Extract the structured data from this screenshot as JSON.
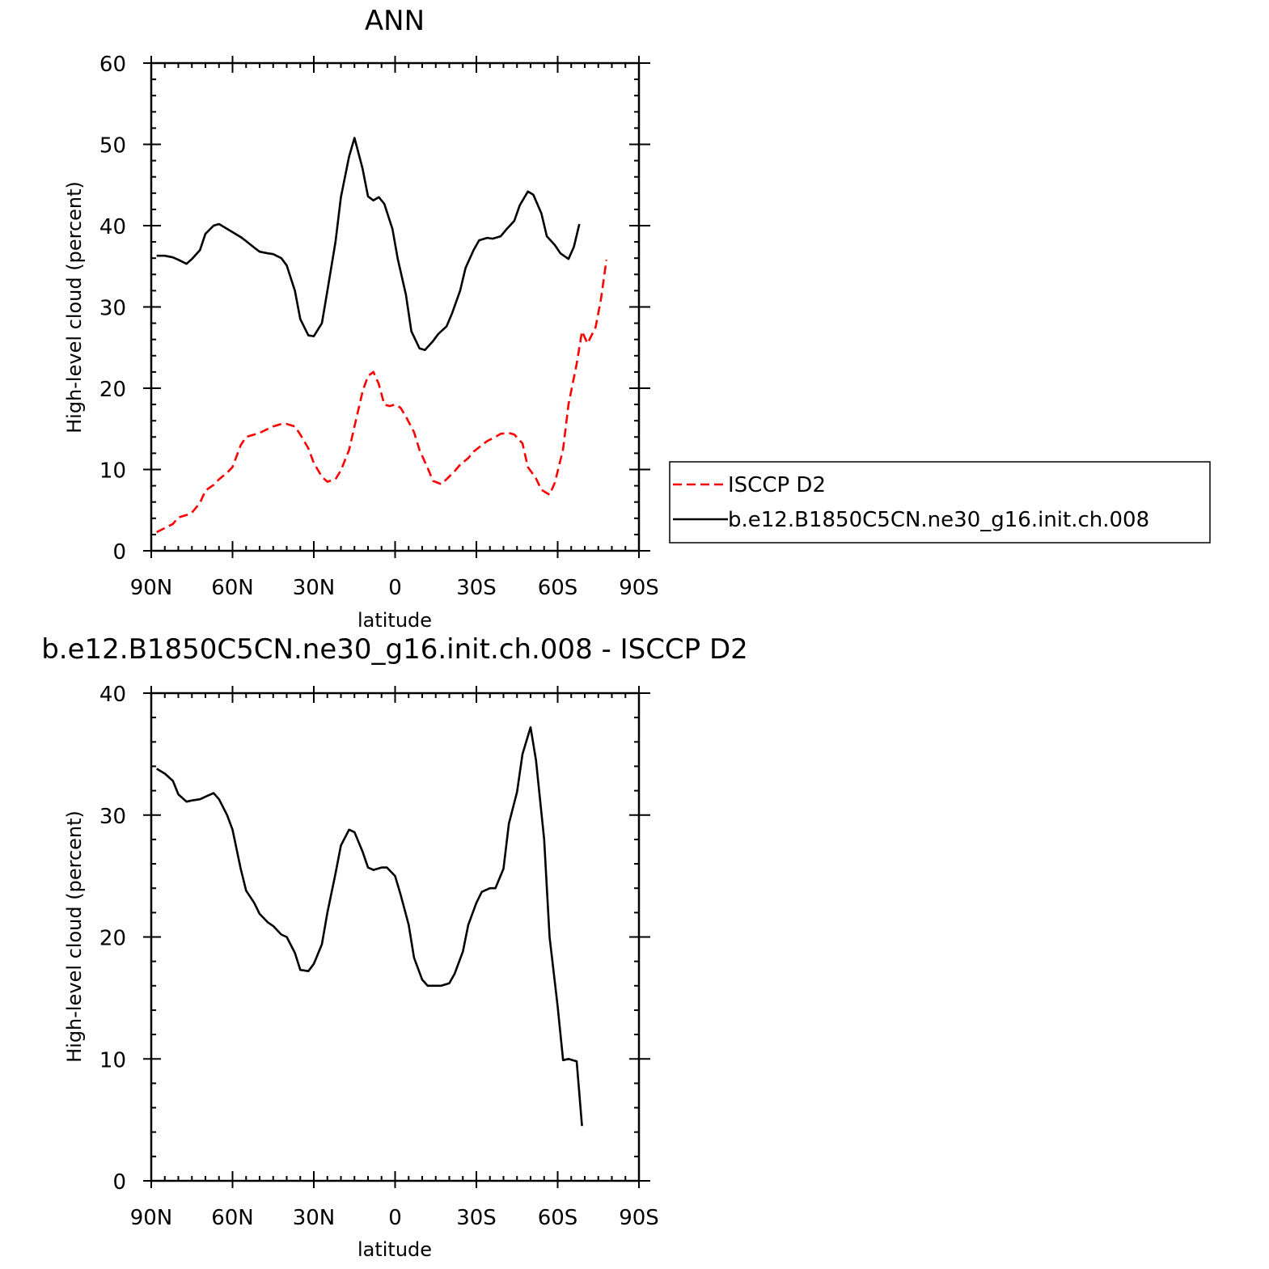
{
  "chart_data": [
    {
      "type": "line",
      "title": "ANN",
      "xlabel": "latitude",
      "ylabel": "High-level cloud (percent)",
      "xlim": [
        -90,
        90
      ],
      "ylim": [
        0,
        60
      ],
      "x_ticks": [
        {
          "value": -90,
          "label": "90N"
        },
        {
          "value": -60,
          "label": "60N"
        },
        {
          "value": -30,
          "label": "30N"
        },
        {
          "value": 0,
          "label": "0"
        },
        {
          "value": 30,
          "label": "30S"
        },
        {
          "value": 60,
          "label": "60S"
        },
        {
          "value": 90,
          "label": "90S"
        }
      ],
      "y_ticks": [
        0,
        10,
        20,
        30,
        40,
        50,
        60
      ],
      "legend": {
        "placement": "right",
        "entries": [
          "ISCCP D2",
          "b.e12.B1850C5CN.ne30_g16.init.ch.008"
        ]
      },
      "series": [
        {
          "name": "ISCCP D2",
          "color": "#ff0000",
          "dash": true,
          "points": [
            [
              -88,
              2.3
            ],
            [
              -85,
              2.8
            ],
            [
              -82,
              3.3
            ],
            [
              -80,
              4.1
            ],
            [
              -77,
              4.4
            ],
            [
              -75,
              4.7
            ],
            [
              -72,
              5.9
            ],
            [
              -70,
              7.4
            ],
            [
              -67,
              8.1
            ],
            [
              -65,
              8.8
            ],
            [
              -62,
              9.6
            ],
            [
              -60,
              10.3
            ],
            [
              -57,
              13.0
            ],
            [
              -55,
              14.0
            ],
            [
              -52,
              14.3
            ],
            [
              -50,
              14.5
            ],
            [
              -47,
              15.0
            ],
            [
              -45,
              15.3
            ],
            [
              -42,
              15.6
            ],
            [
              -40,
              15.6
            ],
            [
              -37,
              15.3
            ],
            [
              -35,
              14.3
            ],
            [
              -32,
              12.6
            ],
            [
              -30,
              10.8
            ],
            [
              -27,
              9.1
            ],
            [
              -25,
              8.5
            ],
            [
              -22,
              8.8
            ],
            [
              -20,
              9.9
            ],
            [
              -17,
              12.4
            ],
            [
              -15,
              15.3
            ],
            [
              -12,
              19.6
            ],
            [
              -10,
              21.5
            ],
            [
              -8,
              22.0
            ],
            [
              -6,
              20.5
            ],
            [
              -4,
              18.0
            ],
            [
              -2,
              17.8
            ],
            [
              0,
              18.0
            ],
            [
              2,
              17.6
            ],
            [
              4,
              16.5
            ],
            [
              7,
              14.6
            ],
            [
              9,
              12.4
            ],
            [
              12,
              10.2
            ],
            [
              14,
              8.6
            ],
            [
              17,
              8.2
            ],
            [
              19,
              8.8
            ],
            [
              22,
              9.8
            ],
            [
              24,
              10.6
            ],
            [
              27,
              11.4
            ],
            [
              29,
              12.2
            ],
            [
              32,
              13.0
            ],
            [
              34,
              13.5
            ],
            [
              37,
              14.0
            ],
            [
              39,
              14.4
            ],
            [
              42,
              14.5
            ],
            [
              44,
              14.3
            ],
            [
              47,
              13.2
            ],
            [
              49,
              10.3
            ],
            [
              52,
              8.9
            ],
            [
              54,
              7.5
            ],
            [
              57,
              6.9
            ],
            [
              59,
              8.4
            ],
            [
              62,
              12.5
            ],
            [
              64,
              18.0
            ],
            [
              67,
              23.0
            ],
            [
              69,
              27.0
            ],
            [
              71,
              25.5
            ],
            [
              74,
              27.5
            ],
            [
              76,
              31.0
            ],
            [
              78,
              35.8
            ]
          ]
        },
        {
          "name": "b.e12.B1850C5CN.ne30_g16.init.ch.008",
          "color": "#000000",
          "dash": false,
          "points": [
            [
              -88,
              36.3
            ],
            [
              -85,
              36.3
            ],
            [
              -82,
              36.1
            ],
            [
              -80,
              35.8
            ],
            [
              -77,
              35.3
            ],
            [
              -75,
              35.9
            ],
            [
              -72,
              37.0
            ],
            [
              -70,
              39.0
            ],
            [
              -67,
              40.0
            ],
            [
              -65,
              40.2
            ],
            [
              -62,
              39.6
            ],
            [
              -60,
              39.2
            ],
            [
              -57,
              38.6
            ],
            [
              -55,
              38.1
            ],
            [
              -52,
              37.3
            ],
            [
              -50,
              36.8
            ],
            [
              -47,
              36.6
            ],
            [
              -45,
              36.5
            ],
            [
              -42,
              36.0
            ],
            [
              -40,
              35.1
            ],
            [
              -37,
              32.0
            ],
            [
              -35,
              28.5
            ],
            [
              -32,
              26.5
            ],
            [
              -30,
              26.4
            ],
            [
              -27,
              28.0
            ],
            [
              -25,
              32.0
            ],
            [
              -22,
              38.0
            ],
            [
              -20,
              43.5
            ],
            [
              -17,
              48.5
            ],
            [
              -15,
              50.8
            ],
            [
              -12,
              47.0
            ],
            [
              -10,
              43.6
            ],
            [
              -8,
              43.1
            ],
            [
              -6,
              43.5
            ],
            [
              -4,
              42.7
            ],
            [
              -1,
              39.6
            ],
            [
              1,
              35.9
            ],
            [
              4,
              31.5
            ],
            [
              6,
              27.0
            ],
            [
              9,
              24.9
            ],
            [
              11,
              24.7
            ],
            [
              14,
              25.8
            ],
            [
              16,
              26.7
            ],
            [
              19,
              27.6
            ],
            [
              21,
              29.2
            ],
            [
              24,
              32.0
            ],
            [
              26,
              34.8
            ],
            [
              29,
              37.0
            ],
            [
              31,
              38.2
            ],
            [
              34,
              38.5
            ],
            [
              36,
              38.4
            ],
            [
              39,
              38.7
            ],
            [
              41,
              39.5
            ],
            [
              44,
              40.6
            ],
            [
              46,
              42.5
            ],
            [
              49,
              44.2
            ],
            [
              51,
              43.8
            ],
            [
              54,
              41.5
            ],
            [
              56,
              38.7
            ],
            [
              59,
              37.6
            ],
            [
              61,
              36.6
            ],
            [
              64,
              35.9
            ],
            [
              66,
              37.4
            ],
            [
              68,
              40.2
            ]
          ]
        }
      ]
    },
    {
      "type": "line",
      "title": "b.e12.B1850C5CN.ne30_g16.init.ch.008 - ISCCP D2",
      "xlabel": "latitude",
      "ylabel": "High-level cloud (percent)",
      "xlim": [
        -90,
        90
      ],
      "ylim": [
        0,
        40
      ],
      "x_ticks": [
        {
          "value": -90,
          "label": "90N"
        },
        {
          "value": -60,
          "label": "60N"
        },
        {
          "value": -30,
          "label": "30N"
        },
        {
          "value": 0,
          "label": "0"
        },
        {
          "value": 30,
          "label": "30S"
        },
        {
          "value": 60,
          "label": "60S"
        },
        {
          "value": 90,
          "label": "90S"
        }
      ],
      "y_ticks": [
        0,
        10,
        20,
        30,
        40
      ],
      "series": [
        {
          "color": "#000000",
          "dash": false,
          "points": [
            [
              -88,
              33.8
            ],
            [
              -85,
              33.4
            ],
            [
              -82,
              32.8
            ],
            [
              -80,
              31.7
            ],
            [
              -77,
              31.1
            ],
            [
              -75,
              31.2
            ],
            [
              -72,
              31.3
            ],
            [
              -70,
              31.5
            ],
            [
              -67,
              31.8
            ],
            [
              -65,
              31.3
            ],
            [
              -62,
              30.0
            ],
            [
              -60,
              28.8
            ],
            [
              -57,
              25.6
            ],
            [
              -55,
              23.8
            ],
            [
              -52,
              22.8
            ],
            [
              -50,
              21.9
            ],
            [
              -47,
              21.2
            ],
            [
              -45,
              20.9
            ],
            [
              -42,
              20.2
            ],
            [
              -40,
              20.0
            ],
            [
              -37,
              18.7
            ],
            [
              -35,
              17.3
            ],
            [
              -32,
              17.2
            ],
            [
              -30,
              17.8
            ],
            [
              -27,
              19.4
            ],
            [
              -25,
              22.0
            ],
            [
              -22,
              25.2
            ],
            [
              -20,
              27.5
            ],
            [
              -17,
              28.8
            ],
            [
              -15,
              28.6
            ],
            [
              -12,
              27.0
            ],
            [
              -10,
              25.7
            ],
            [
              -8,
              25.5
            ],
            [
              -5,
              25.7
            ],
            [
              -3,
              25.7
            ],
            [
              0,
              25.0
            ],
            [
              2,
              23.5
            ],
            [
              5,
              21.0
            ],
            [
              7,
              18.3
            ],
            [
              10,
              16.5
            ],
            [
              12,
              16.0
            ],
            [
              15,
              16.0
            ],
            [
              17,
              16.0
            ],
            [
              20,
              16.2
            ],
            [
              22,
              17.0
            ],
            [
              25,
              18.8
            ],
            [
              27,
              21.0
            ],
            [
              30,
              22.8
            ],
            [
              32,
              23.7
            ],
            [
              35,
              24.0
            ],
            [
              37,
              24.0
            ],
            [
              40,
              25.6
            ],
            [
              42,
              29.3
            ],
            [
              45,
              31.9
            ],
            [
              47,
              35.0
            ],
            [
              50,
              37.2
            ],
            [
              52,
              34.5
            ],
            [
              55,
              28.0
            ],
            [
              57,
              20.0
            ],
            [
              60,
              14.3
            ],
            [
              62,
              9.9
            ],
            [
              64,
              10.0
            ],
            [
              67,
              9.8
            ],
            [
              69,
              4.5
            ]
          ]
        }
      ]
    }
  ]
}
